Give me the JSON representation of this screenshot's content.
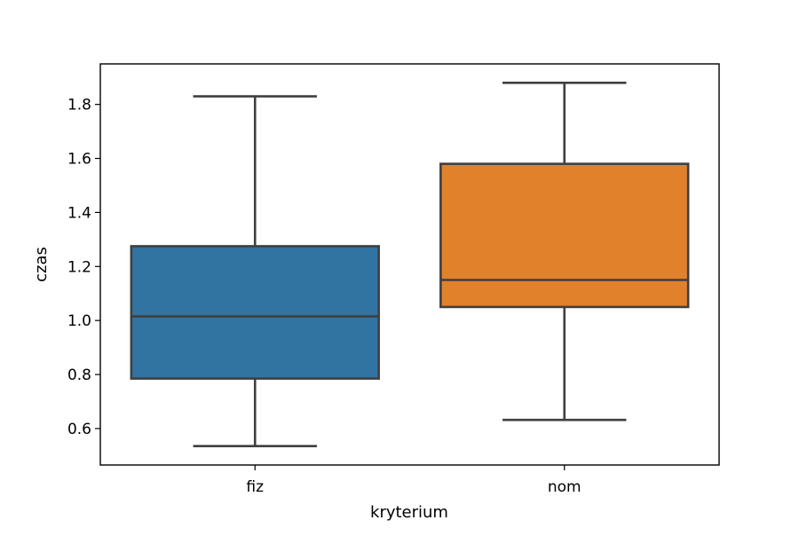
{
  "chart_data": {
    "type": "box",
    "xlabel": "kryterium",
    "ylabel": "czas",
    "categories": [
      "fiz",
      "nom"
    ],
    "ylim": [
      0.465,
      1.95
    ],
    "yticks": [
      "0.6",
      "0.8",
      "1.0",
      "1.2",
      "1.4",
      "1.6",
      "1.8"
    ],
    "grid": false,
    "boxes": [
      {
        "category": "fiz",
        "whisker_low": 0.535,
        "q1": 0.785,
        "median": 1.015,
        "q3": 1.275,
        "whisker_high": 1.83,
        "color": "#3274a1"
      },
      {
        "category": "nom",
        "whisker_low": 0.632,
        "q1": 1.05,
        "median": 1.15,
        "q3": 1.58,
        "whisker_high": 1.88,
        "color": "#e1812c"
      }
    ]
  }
}
